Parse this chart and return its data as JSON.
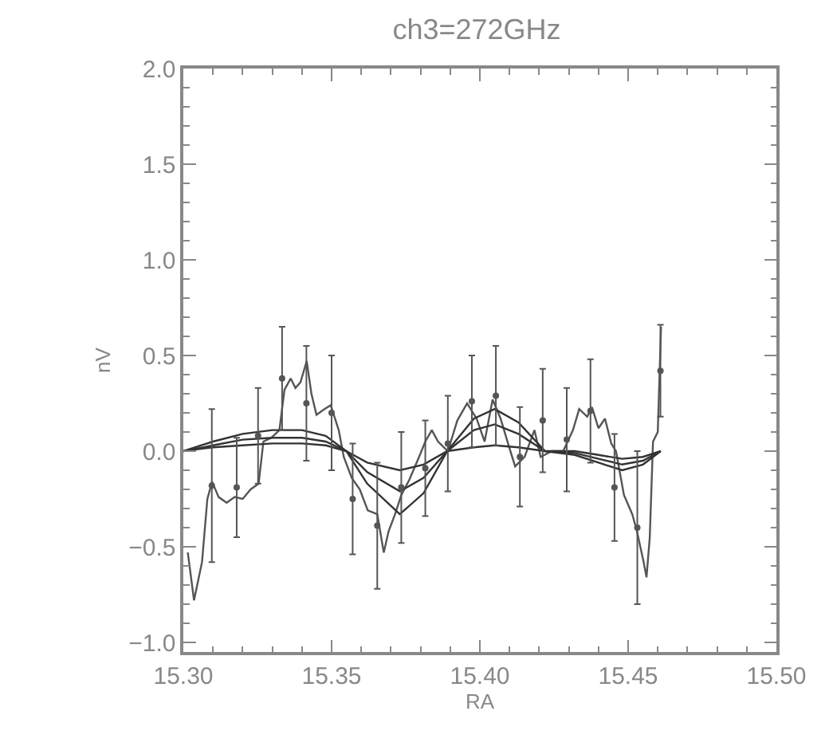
{
  "chart_data": {
    "type": "line",
    "title": "ch3=272GHz",
    "xlabel": "RA",
    "ylabel": "nV",
    "xlim": [
      15.3,
      15.5
    ],
    "xticks": [
      {
        "value": 15.3,
        "label": "15.30"
      },
      {
        "value": 15.35,
        "label": "15.35"
      },
      {
        "value": 15.4,
        "label": "15.40"
      },
      {
        "value": 15.45,
        "label": "15.45"
      },
      {
        "value": 15.5,
        "label": "15.50"
      }
    ],
    "ylim": [
      -1.05,
      2.0
    ],
    "yticks": [
      {
        "value": -1.0,
        "label": "−1.0"
      },
      {
        "value": -0.5,
        "label": "−0.5"
      },
      {
        "value": 0.0,
        "label": "0.0"
      },
      {
        "value": 0.5,
        "label": "0.5"
      },
      {
        "value": 1.0,
        "label": "1.0"
      },
      {
        "value": 1.5,
        "label": "1.5"
      },
      {
        "value": 2.0,
        "label": "2.0"
      }
    ],
    "grid": false,
    "marker": "none",
    "line_style": "solid",
    "series": [
      {
        "color": "#555555",
        "x": [
          15.3015,
          15.3036,
          15.3063,
          15.3081,
          15.3097,
          15.3119,
          15.3146,
          15.3173,
          15.32,
          15.3227,
          15.3254,
          15.327,
          15.3297,
          15.3324,
          15.3341,
          15.3362,
          15.3378,
          15.3395,
          15.3416,
          15.3432,
          15.3449,
          15.3476,
          15.3497,
          15.3524,
          15.3541,
          15.3568,
          15.3595,
          15.3622,
          15.3654,
          15.3676,
          15.3692,
          15.3714,
          15.3735,
          15.3762,
          15.3795,
          15.3816,
          15.3838,
          15.3859,
          15.3892,
          15.3924,
          15.3957,
          15.3989,
          15.4016,
          15.4043,
          15.407,
          15.4097,
          15.4119,
          15.4151,
          15.4184,
          15.4205,
          15.4243,
          15.4281,
          15.4314,
          15.4335,
          15.4362,
          15.4378,
          15.44,
          15.4422,
          15.4443,
          15.4459,
          15.4486,
          15.4514,
          15.453,
          15.4541,
          15.4551,
          15.4562,
          15.4573,
          15.4584,
          15.46,
          15.4611
        ],
        "values": [
          -0.53,
          -0.78,
          -0.58,
          -0.25,
          -0.16,
          -0.24,
          -0.27,
          -0.24,
          -0.25,
          -0.2,
          -0.17,
          0.05,
          0.07,
          0.11,
          0.32,
          0.38,
          0.33,
          0.36,
          0.47,
          0.3,
          0.19,
          0.22,
          0.24,
          0.11,
          -0.03,
          -0.14,
          -0.2,
          -0.31,
          -0.33,
          -0.53,
          -0.42,
          -0.33,
          -0.23,
          -0.15,
          -0.03,
          0.05,
          0.11,
          0.05,
          0.0,
          0.16,
          0.25,
          0.17,
          0.05,
          0.27,
          0.17,
          0.03,
          -0.08,
          -0.03,
          0.11,
          -0.03,
          0.0,
          0.0,
          0.11,
          0.22,
          0.18,
          0.23,
          0.12,
          0.17,
          0.04,
          0.0,
          -0.23,
          -0.33,
          -0.42,
          -0.5,
          -0.57,
          -0.66,
          -0.45,
          0.05,
          0.1,
          0.65
        ]
      },
      {
        "type": "scatter",
        "marker": "circle",
        "color": "#555555",
        "x": [
          15.3096,
          15.318,
          15.3252,
          15.3333,
          15.3415,
          15.35,
          15.3571,
          15.3654,
          15.3735,
          15.3816,
          15.3892,
          15.3973,
          15.4054,
          15.4135,
          15.4212,
          15.4293,
          15.4373,
          15.4454,
          15.4531,
          15.4609
        ],
        "values": [
          -0.18,
          -0.19,
          0.08,
          0.38,
          0.25,
          0.2,
          -0.25,
          -0.39,
          -0.19,
          -0.09,
          0.04,
          0.26,
          0.29,
          -0.03,
          0.16,
          0.06,
          0.21,
          -0.19,
          -0.4,
          0.42
        ],
        "errors": [
          0.4,
          0.26,
          0.25,
          0.27,
          0.3,
          0.3,
          0.29,
          0.33,
          0.29,
          0.25,
          0.25,
          0.24,
          0.26,
          0.26,
          0.27,
          0.27,
          0.27,
          0.28,
          0.4,
          0.24
        ]
      },
      {
        "color": "#333333",
        "x": [
          15.3,
          15.31,
          15.32,
          15.33,
          15.34,
          15.348,
          15.355,
          15.362,
          15.373,
          15.381,
          15.389,
          15.398,
          15.405,
          15.413,
          15.422,
          15.432,
          15.44,
          15.448,
          15.455,
          15.461
        ],
        "values": [
          0,
          0.05,
          0.09,
          0.11,
          0.11,
          0.08,
          0,
          -0.17,
          -0.33,
          -0.22,
          0,
          0.17,
          0.22,
          0.15,
          0,
          -0.02,
          -0.06,
          -0.1,
          -0.07,
          0.0
        ]
      },
      {
        "color": "#333333",
        "x": [
          15.3,
          15.31,
          15.32,
          15.33,
          15.34,
          15.348,
          15.355,
          15.362,
          15.373,
          15.381,
          15.389,
          15.398,
          15.405,
          15.413,
          15.422,
          15.432,
          15.44,
          15.448,
          15.455,
          15.461
        ],
        "values": [
          0,
          0.03,
          0.06,
          0.07,
          0.07,
          0.05,
          0,
          -0.11,
          -0.21,
          -0.14,
          0,
          0.11,
          0.14,
          0.09,
          0,
          -0.01,
          -0.04,
          -0.07,
          -0.05,
          0.0
        ]
      },
      {
        "color": "#333333",
        "x": [
          15.3,
          15.31,
          15.32,
          15.33,
          15.34,
          15.348,
          15.355,
          15.362,
          15.373,
          15.381,
          15.389,
          15.398,
          15.405,
          15.413,
          15.422,
          15.432,
          15.44,
          15.448,
          15.455,
          15.461
        ],
        "values": [
          0,
          0.02,
          0.03,
          0.04,
          0.04,
          0.03,
          0,
          -0.06,
          -0.1,
          -0.07,
          0,
          0.02,
          0.03,
          0.02,
          0,
          0,
          -0.02,
          -0.04,
          -0.03,
          0.0
        ]
      }
    ]
  }
}
